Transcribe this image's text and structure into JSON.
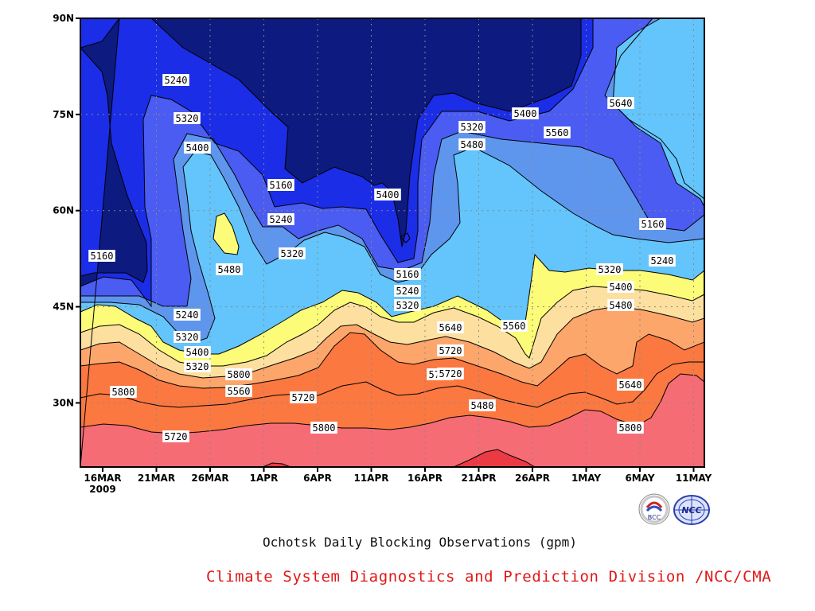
{
  "chart_data": {
    "type": "contour",
    "title": "Ochotsk Daily Blocking Observations (gpm)",
    "xlabel": "",
    "ylabel": "",
    "x_ticks": [
      "16MAR",
      "21MAR",
      "26MAR",
      "1APR",
      "6APR",
      "11APR",
      "16APR",
      "21APR",
      "26APR",
      "1MAY",
      "6MAY",
      "11MAY"
    ],
    "x_year_label": "2009",
    "y_ticks": [
      "90N",
      "75N",
      "60N",
      "45N",
      "30N"
    ],
    "ylim": [
      20,
      90
    ],
    "contour_levels": [
      5160,
      5240,
      5320,
      5400,
      5480,
      5560,
      5640,
      5720,
      5800
    ],
    "contour_labels": [
      "5240",
      "5320",
      "5400",
      "5160",
      "5240",
      "5320",
      "5480",
      "5160",
      "5240",
      "5320",
      "5400",
      "5320",
      "5400",
      "5160",
      "5240",
      "5320",
      "5320",
      "5480",
      "5400",
      "5560",
      "5640",
      "5160",
      "5240",
      "5320",
      "5400",
      "5480",
      "5560",
      "5640",
      "5720",
      "5720",
      "5800",
      "5720",
      "5800",
      "5560",
      "5640",
      "5720",
      "5480",
      "5720",
      "5800",
      "5800"
    ],
    "colors": {
      "below_5160": "#0d1a80",
      "5160_5240": "#1b2de6",
      "5240_5320": "#4a5cf2",
      "5320_5400": "#5f96ed",
      "5400_5480": "#63c5fb",
      "5480_5560": "#fcfc78",
      "5560_5640": "#fde09f",
      "5640_5720": "#fda66b",
      "5720_5800": "#fb7841",
      "5800_5880": "#f56c75",
      "above_5880": "#eb3a43"
    }
  },
  "captions": {
    "plot_title": "Ochotsk Daily Blocking Observations (gpm)",
    "division": "Climate System Diagnostics and Prediction Division /NCC/CMA"
  },
  "logos": {
    "bcc_text": "BCC",
    "ncc_text": "NCC"
  }
}
